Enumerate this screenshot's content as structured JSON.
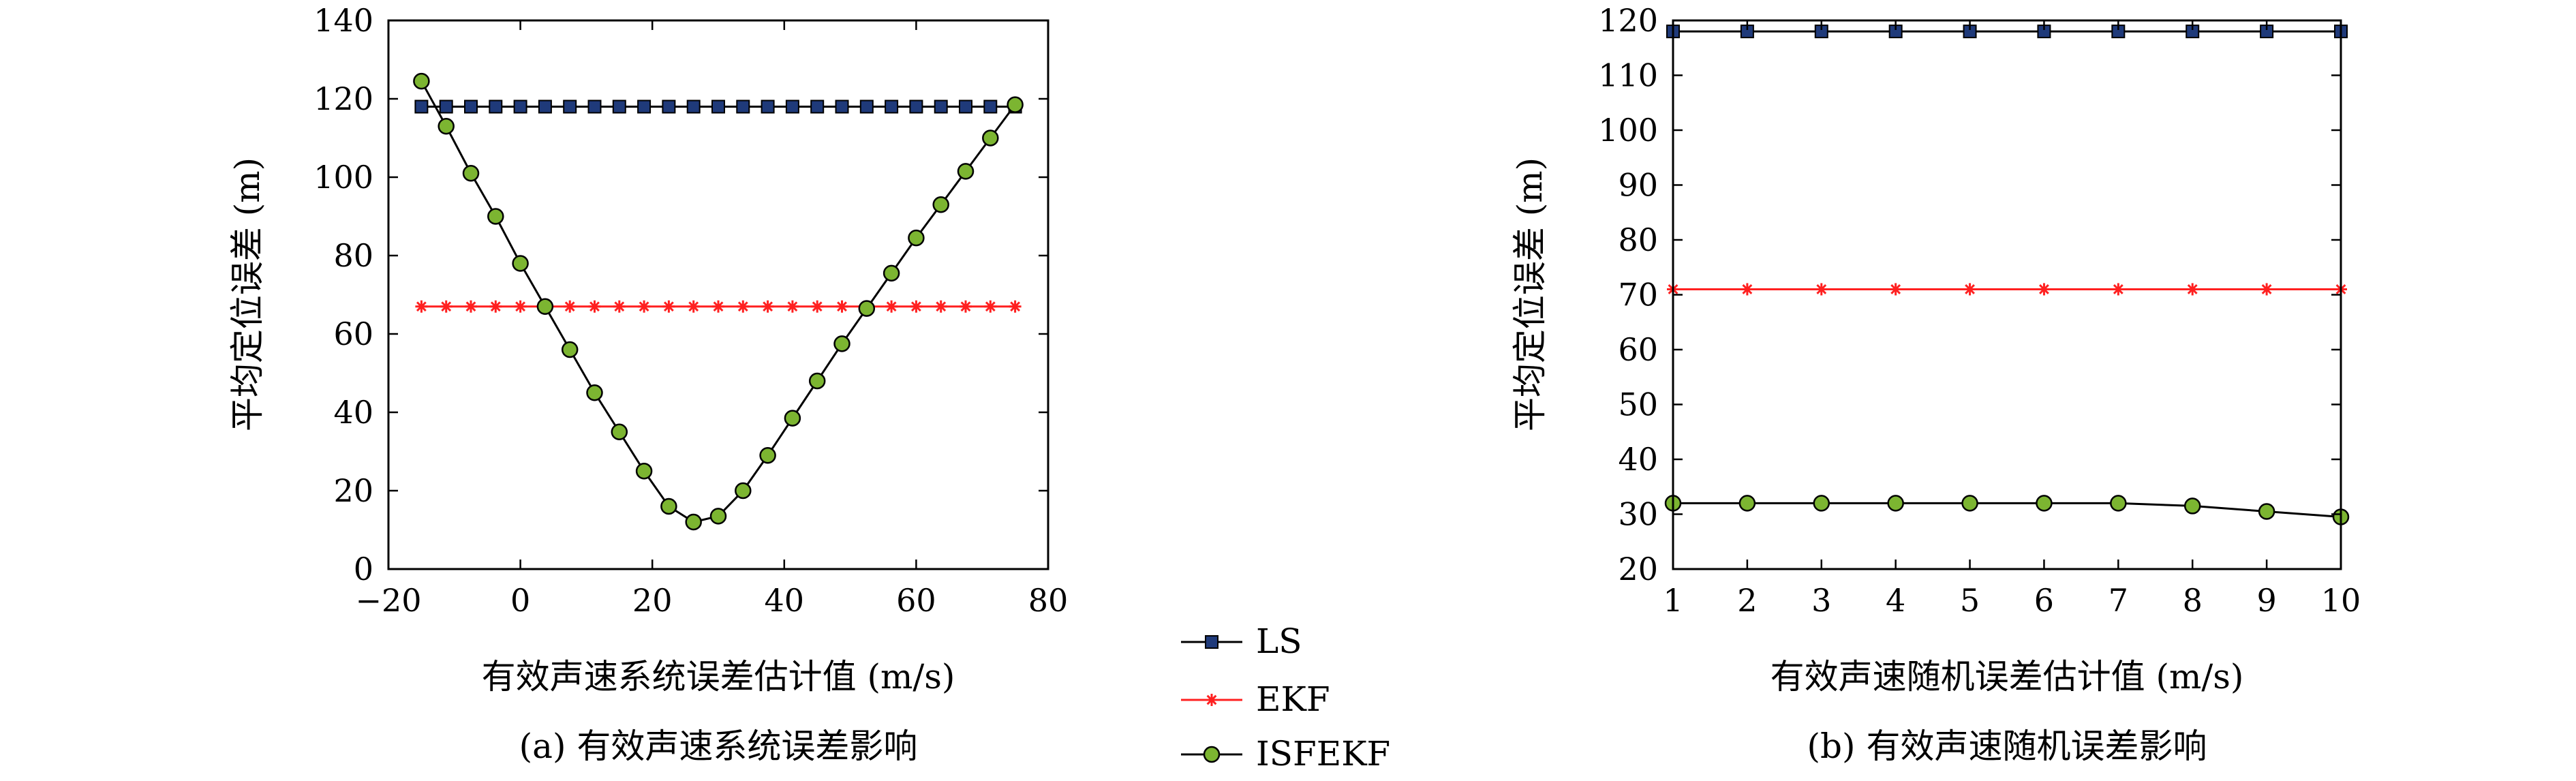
{
  "chart_data": [
    {
      "type": "line",
      "caption": "(a) 有效声速系统误差影响",
      "xlabel": "有效声速系统误差估计值 (m/s)",
      "ylabel": "平均定位误差 (m)",
      "xlim": [
        -20,
        80
      ],
      "ylim": [
        0,
        140
      ],
      "xticks": [
        -20,
        0,
        20,
        40,
        60,
        80
      ],
      "xtick_labels": [
        "−20",
        "0",
        "20",
        "40",
        "60",
        "80"
      ],
      "yticks": [
        0,
        20,
        40,
        60,
        80,
        100,
        120,
        140
      ],
      "ytick_labels": [
        "0",
        "20",
        "40",
        "60",
        "80",
        "100",
        "120",
        "140"
      ],
      "x": [
        -15,
        -11.25,
        -7.5,
        -3.75,
        0,
        3.75,
        7.5,
        11.25,
        15,
        18.75,
        22.5,
        26.25,
        30,
        33.75,
        37.5,
        41.25,
        45,
        48.75,
        52.5,
        56.25,
        60,
        63.75,
        67.5,
        71.25,
        75
      ],
      "series": [
        {
          "name": "LS",
          "color": "#1f3a7a",
          "marker": "square",
          "values": [
            118,
            118,
            118,
            118,
            118,
            118,
            118,
            118,
            118,
            118,
            118,
            118,
            118,
            118,
            118,
            118,
            118,
            118,
            118,
            118,
            118,
            118,
            118,
            118,
            118
          ]
        },
        {
          "name": "EKF",
          "color": "#ff2020",
          "marker": "star",
          "values": [
            67,
            67,
            67,
            67,
            67,
            67,
            67,
            67,
            67,
            67,
            67,
            67,
            67,
            67,
            67,
            67,
            67,
            67,
            67,
            67,
            67,
            67,
            67,
            67,
            67
          ]
        },
        {
          "name": "ISFEKF",
          "color": "#7cb531",
          "marker": "circle",
          "values": [
            124.5,
            113,
            101,
            90,
            78,
            67,
            56,
            45,
            35,
            25,
            16,
            12,
            13.5,
            20,
            29,
            38.5,
            48,
            57.5,
            66.5,
            75.5,
            84.5,
            93,
            101.5,
            110,
            118.5
          ]
        }
      ],
      "grid": false
    },
    {
      "type": "line",
      "caption": "(b) 有效声速随机误差影响",
      "xlabel": "有效声速随机误差估计值 (m/s)",
      "ylabel": "平均定位误差 (m)",
      "xlim": [
        1,
        10
      ],
      "ylim": [
        20,
        120
      ],
      "xticks": [
        1,
        2,
        3,
        4,
        5,
        6,
        7,
        8,
        9,
        10
      ],
      "xtick_labels": [
        "1",
        "2",
        "3",
        "4",
        "5",
        "6",
        "7",
        "8",
        "9",
        "10"
      ],
      "yticks": [
        20,
        30,
        40,
        50,
        60,
        70,
        80,
        90,
        100,
        110,
        120
      ],
      "ytick_labels": [
        "20",
        "30",
        "40",
        "50",
        "60",
        "70",
        "80",
        "90",
        "100",
        "110",
        "120"
      ],
      "x": [
        1,
        2,
        3,
        4,
        5,
        6,
        7,
        8,
        9,
        10
      ],
      "series": [
        {
          "name": "LS",
          "color": "#1f3a7a",
          "marker": "square",
          "values": [
            118,
            118,
            118,
            118,
            118,
            118,
            118,
            118,
            118,
            118
          ]
        },
        {
          "name": "EKF",
          "color": "#ff2020",
          "marker": "star",
          "values": [
            71,
            71,
            71,
            71,
            71,
            71,
            71,
            71,
            71,
            71
          ]
        },
        {
          "name": "ISFEKF",
          "color": "#7cb531",
          "marker": "circle",
          "values": [
            32,
            32,
            32,
            32,
            32,
            32,
            32,
            31.5,
            30.5,
            29.5
          ]
        }
      ],
      "grid": false
    }
  ],
  "legend": {
    "placement": "bottom-center",
    "items": [
      {
        "label": "LS",
        "color": "#1f3a7a",
        "marker": "square"
      },
      {
        "label": "EKF",
        "color": "#ff2020",
        "marker": "star"
      },
      {
        "label": "ISFEKF",
        "color": "#7cb531",
        "marker": "circle"
      }
    ]
  }
}
